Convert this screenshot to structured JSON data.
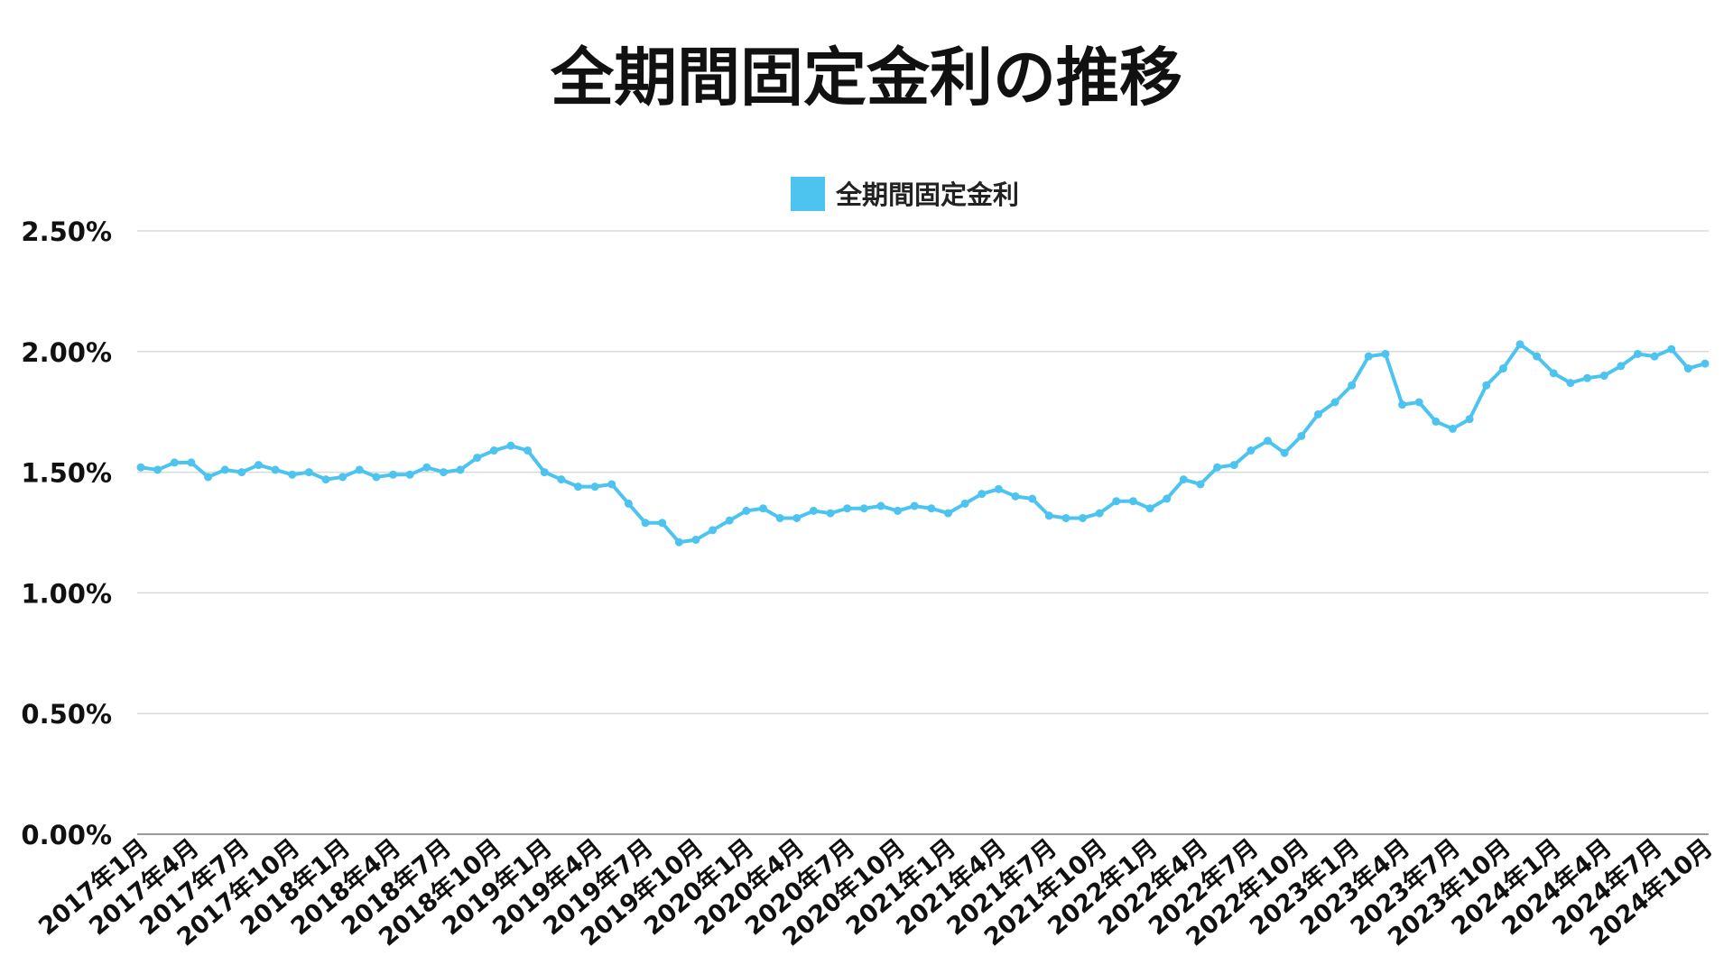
{
  "chart_data": {
    "type": "line",
    "title": "全期間固定金利の推移",
    "xlabel": "",
    "ylabel": "",
    "ylim": [
      0,
      2.5
    ],
    "y_ticks": [
      "0.00%",
      "0.50%",
      "1.00%",
      "1.50%",
      "2.00%",
      "2.50%"
    ],
    "y_tick_values": [
      0,
      0.5,
      1.0,
      1.5,
      2.0,
      2.5
    ],
    "grid": true,
    "legend_position": "top-center",
    "x_tick_labels": [
      "2017年1月",
      "2017年4月",
      "2017年7月",
      "2017年10月",
      "2018年1月",
      "2018年4月",
      "2018年7月",
      "2018年10月",
      "2019年1月",
      "2019年4月",
      "2019年7月",
      "2019年10月",
      "2020年1月",
      "2020年4月",
      "2020年7月",
      "2020年10月",
      "2021年1月",
      "2021年4月",
      "2021年7月",
      "2021年10月",
      "2022年1月",
      "2022年4月",
      "2022年7月",
      "2022年10月",
      "2023年1月",
      "2023年4月",
      "2023年7月",
      "2023年10月",
      "2024年1月",
      "2024年4月",
      "2024年7月",
      "2024年10月"
    ],
    "x": [
      "2017-01",
      "2017-02",
      "2017-03",
      "2017-04",
      "2017-05",
      "2017-06",
      "2017-07",
      "2017-08",
      "2017-09",
      "2017-10",
      "2017-11",
      "2017-12",
      "2018-01",
      "2018-02",
      "2018-03",
      "2018-04",
      "2018-05",
      "2018-06",
      "2018-07",
      "2018-08",
      "2018-09",
      "2018-10",
      "2018-11",
      "2018-12",
      "2019-01",
      "2019-02",
      "2019-03",
      "2019-04",
      "2019-05",
      "2019-06",
      "2019-07",
      "2019-08",
      "2019-09",
      "2019-10",
      "2019-11",
      "2019-12",
      "2020-01",
      "2020-02",
      "2020-03",
      "2020-04",
      "2020-05",
      "2020-06",
      "2020-07",
      "2020-08",
      "2020-09",
      "2020-10",
      "2020-11",
      "2020-12",
      "2021-01",
      "2021-02",
      "2021-03",
      "2021-04",
      "2021-05",
      "2021-06",
      "2021-07",
      "2021-08",
      "2021-09",
      "2021-10",
      "2021-11",
      "2021-12",
      "2022-01",
      "2022-02",
      "2022-03",
      "2022-04",
      "2022-05",
      "2022-06",
      "2022-07",
      "2022-08",
      "2022-09",
      "2022-10",
      "2022-11",
      "2022-12",
      "2023-01",
      "2023-02",
      "2023-03",
      "2023-04",
      "2023-05",
      "2023-06",
      "2023-07",
      "2023-08",
      "2023-09",
      "2023-10",
      "2023-11",
      "2023-12",
      "2024-01",
      "2024-02",
      "2024-03",
      "2024-04",
      "2024-05",
      "2024-06",
      "2024-07",
      "2024-08",
      "2024-09",
      "2024-10"
    ],
    "series": [
      {
        "name": "全期間固定金利",
        "color": "#4cc4ef",
        "values": [
          1.52,
          1.51,
          1.54,
          1.54,
          1.48,
          1.51,
          1.5,
          1.53,
          1.51,
          1.49,
          1.5,
          1.47,
          1.48,
          1.51,
          1.48,
          1.49,
          1.49,
          1.52,
          1.5,
          1.51,
          1.56,
          1.59,
          1.61,
          1.59,
          1.5,
          1.47,
          1.44,
          1.44,
          1.45,
          1.37,
          1.29,
          1.29,
          1.21,
          1.22,
          1.26,
          1.3,
          1.34,
          1.35,
          1.31,
          1.31,
          1.34,
          1.33,
          1.35,
          1.35,
          1.36,
          1.34,
          1.36,
          1.35,
          1.33,
          1.37,
          1.41,
          1.43,
          1.4,
          1.39,
          1.32,
          1.31,
          1.31,
          1.33,
          1.38,
          1.38,
          1.35,
          1.39,
          1.47,
          1.45,
          1.52,
          1.53,
          1.59,
          1.63,
          1.58,
          1.65,
          1.74,
          1.79,
          1.86,
          1.98,
          1.99,
          1.78,
          1.79,
          1.71,
          1.68,
          1.72,
          1.86,
          1.93,
          2.03,
          1.98,
          1.91,
          1.87,
          1.89,
          1.9,
          1.94,
          1.99,
          1.98,
          2.01,
          1.93,
          1.95
        ]
      }
    ]
  }
}
